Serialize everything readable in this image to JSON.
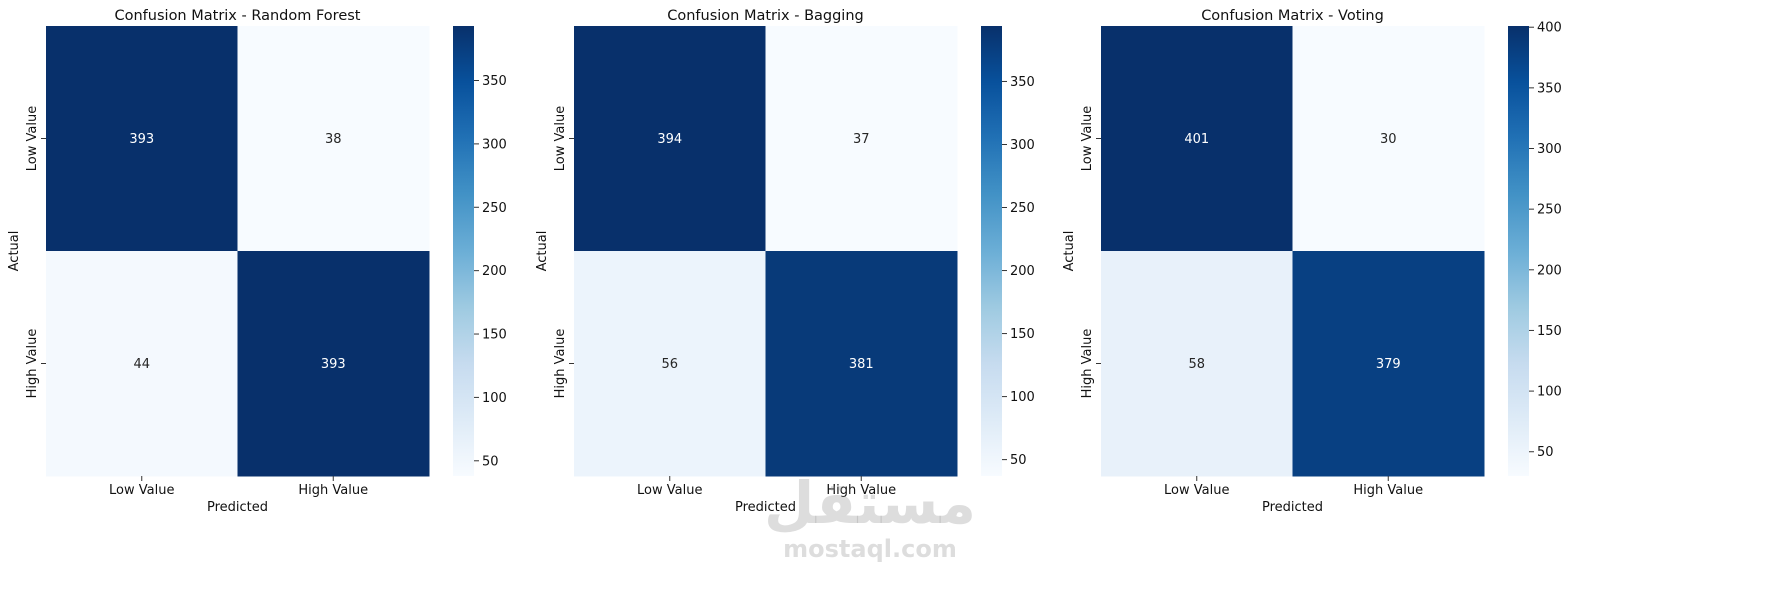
{
  "chart_data": [
    {
      "type": "heatmap",
      "title": "Confusion Matrix - Random Forest",
      "xlabel": "Predicted",
      "ylabel": "Actual",
      "x_categories": [
        "Low Value",
        "High Value"
      ],
      "y_categories": [
        "Low Value",
        "High Value"
      ],
      "values": [
        [
          393,
          38
        ],
        [
          44,
          393
        ]
      ],
      "colormap": "Blues",
      "colorbar": {
        "range": [
          38,
          393
        ],
        "ticks": [
          50,
          100,
          150,
          200,
          250,
          300,
          350
        ]
      }
    },
    {
      "type": "heatmap",
      "title": "Confusion Matrix - Bagging",
      "xlabel": "Predicted",
      "ylabel": "Actual",
      "x_categories": [
        "Low Value",
        "High Value"
      ],
      "y_categories": [
        "Low Value",
        "High Value"
      ],
      "values": [
        [
          394,
          37
        ],
        [
          56,
          381
        ]
      ],
      "colormap": "Blues",
      "colorbar": {
        "range": [
          37,
          394
        ],
        "ticks": [
          50,
          100,
          150,
          200,
          250,
          300,
          350
        ]
      }
    },
    {
      "type": "heatmap",
      "title": "Confusion Matrix - Voting",
      "xlabel": "Predicted",
      "ylabel": "Actual",
      "x_categories": [
        "Low Value",
        "High Value"
      ],
      "y_categories": [
        "Low Value",
        "High Value"
      ],
      "values": [
        [
          401,
          30
        ],
        [
          58,
          379
        ]
      ],
      "colormap": "Blues",
      "colorbar": {
        "range": [
          30,
          401
        ],
        "ticks": [
          50,
          100,
          150,
          200,
          250,
          300,
          350,
          400
        ]
      }
    }
  ],
  "watermark": {
    "arabic": "مستقل",
    "latin": "mostaql.com"
  }
}
